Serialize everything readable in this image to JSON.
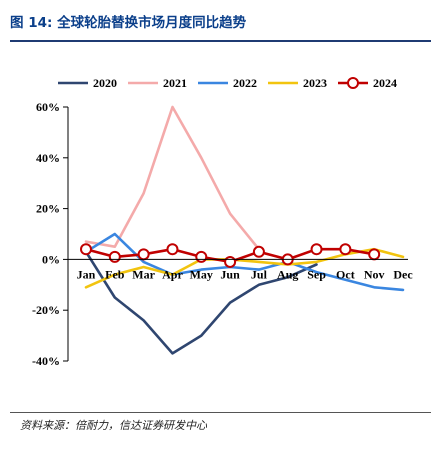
{
  "figure": {
    "title": "图 14:  全球轮胎替换市场月度同比趋势",
    "source": "资料来源：倍耐力，信达证券研发中心"
  },
  "chart_data": {
    "type": "line",
    "title": "",
    "xlabel": "",
    "ylabel": "",
    "categories": [
      "Jan",
      "Feb",
      "Mar",
      "Apr",
      "May",
      "Jun",
      "Jul",
      "Aug",
      "Sep",
      "Oct",
      "Nov",
      "Dec"
    ],
    "y_ticks": [
      -40,
      -20,
      0,
      20,
      40,
      60
    ],
    "y_tick_labels": [
      "-40%",
      "-20%",
      "0%",
      "20%",
      "40%",
      "60%"
    ],
    "ylim": [
      -40,
      60
    ],
    "grid": false,
    "legend_position": "top",
    "series": [
      {
        "name": "2020",
        "color": "#2f4670",
        "marker": "none",
        "values": [
          3,
          -15,
          -24,
          -37,
          -30,
          -17,
          -10,
          -7,
          -2,
          null,
          null,
          2
        ]
      },
      {
        "name": "2021",
        "color": "#f4aaaa",
        "marker": "none",
        "values": [
          7,
          5,
          26,
          60,
          40,
          18,
          4,
          null,
          null,
          null,
          null,
          null
        ]
      },
      {
        "name": "2022",
        "color": "#3a86e0",
        "marker": "none",
        "values": [
          3,
          10,
          -1,
          -6,
          -4,
          -3,
          -4,
          -1,
          -5,
          -8,
          -11,
          -12
        ]
      },
      {
        "name": "2023",
        "color": "#f2c40f",
        "marker": "none",
        "values": [
          -11,
          -6,
          -3,
          -6,
          0,
          0,
          -1,
          -2,
          -1,
          2,
          4,
          1
        ]
      },
      {
        "name": "2024",
        "color": "#c00000",
        "marker": "circle",
        "values": [
          4,
          1,
          2,
          4,
          1,
          -1,
          3,
          0,
          4,
          4,
          2,
          null
        ]
      }
    ]
  }
}
